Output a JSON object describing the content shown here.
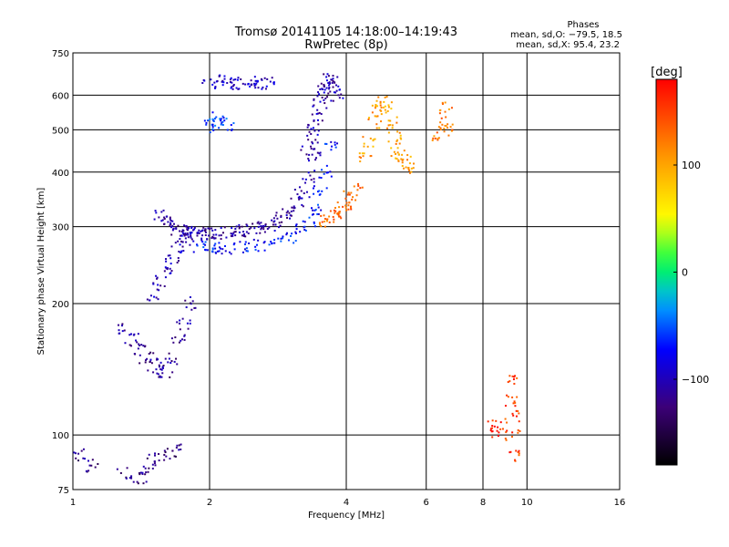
{
  "title": "Tromsø 20141105 14:18:00–14:19:43",
  "subtitle": "RwPretec (8p)",
  "phase_stats": {
    "heading": "Phases",
    "line_o": "mean, sd,O: −79.5, 18.5",
    "line_x": "mean, sd,X:  95.4, 23.2"
  },
  "colorbar": {
    "unit_label": "[deg]",
    "ticks": [
      {
        "value": 100,
        "label": "100"
      },
      {
        "value": 0,
        "label": "0"
      },
      {
        "value": -100,
        "label": "−100"
      }
    ],
    "range": [
      -180,
      180
    ]
  },
  "chart_data": {
    "type": "scatter",
    "xlabel": "Frequency [MHz]",
    "ylabel": "Stationary phase Virtual Height [km]",
    "xscale": "log",
    "yscale": "log",
    "xlim": [
      1,
      16
    ],
    "ylim": [
      75,
      750
    ],
    "x_ticks": [
      {
        "value": 1,
        "label": "1"
      },
      {
        "value": 2,
        "label": "2"
      },
      {
        "value": 4,
        "label": "4"
      },
      {
        "value": 6,
        "label": "6"
      },
      {
        "value": 8,
        "label": "8"
      },
      {
        "value": 10,
        "label": "10"
      },
      {
        "value": 16,
        "label": "16"
      }
    ],
    "y_ticks": [
      {
        "value": 75,
        "label": "75"
      },
      {
        "value": 100,
        "label": "100"
      },
      {
        "value": 200,
        "label": "200"
      },
      {
        "value": 300,
        "label": "300"
      },
      {
        "value": 400,
        "label": "400"
      },
      {
        "value": 500,
        "label": "500"
      },
      {
        "value": 600,
        "label": "600"
      },
      {
        "value": 750,
        "label": "750"
      }
    ],
    "grid": true,
    "point_groups": [
      {
        "x": [
          1.55,
          1.6,
          1.65,
          1.7,
          1.75,
          1.8,
          1.85,
          1.9,
          1.95,
          2.0,
          2.1,
          2.2,
          2.3,
          2.4,
          2.5,
          2.6,
          2.7,
          2.8,
          2.9,
          3.0,
          3.1,
          3.2,
          3.3,
          3.4
        ],
        "y": [
          320,
          308,
          300,
          296,
          293,
          291,
          290,
          289,
          288,
          288,
          289,
          290,
          291,
          293,
          296,
          299,
          303,
          308,
          315,
          325,
          340,
          360,
          390,
          430
        ],
        "phase": -110
      },
      {
        "x": [
          1.9,
          2.0,
          2.1,
          2.2,
          2.4,
          2.6,
          2.8,
          3.0,
          3.2,
          3.3,
          3.4,
          3.5,
          3.6,
          3.7
        ],
        "y": [
          270,
          268,
          267,
          267,
          268,
          271,
          276,
          284,
          297,
          310,
          330,
          360,
          400,
          460
        ],
        "phase": -70
      },
      {
        "x": [
          3.3,
          3.35,
          3.4,
          3.45,
          3.5,
          3.55,
          3.6,
          3.65,
          3.7,
          3.75,
          3.8
        ],
        "y": [
          450,
          480,
          510,
          540,
          570,
          600,
          630,
          650,
          640,
          620,
          600
        ],
        "phase": -105
      },
      {
        "x": [
          3.6,
          3.7,
          3.8,
          3.9,
          4.0,
          4.1,
          4.2
        ],
        "y": [
          310,
          315,
          322,
          330,
          338,
          350,
          365
        ],
        "phase": 130
      },
      {
        "x": [
          4.4,
          4.5,
          4.6,
          4.7,
          4.8,
          4.9,
          5.0,
          5.1,
          5.2,
          5.3,
          5.4,
          5.5
        ],
        "y": [
          430,
          470,
          520,
          560,
          580,
          560,
          520,
          480,
          450,
          430,
          420,
          410
        ],
        "phase": 105
      },
      {
        "x": [
          2.0,
          2.1,
          2.2,
          2.3,
          2.4,
          2.5,
          2.6,
          2.7
        ],
        "y": [
          640,
          645,
          640,
          638,
          642,
          640,
          636,
          640
        ],
        "phase": -95
      },
      {
        "x": [
          2.0,
          2.05,
          2.1,
          2.2
        ],
        "y": [
          510,
          520,
          530,
          515
        ],
        "phase": -60
      },
      {
        "x": [
          1.3,
          1.35,
          1.4,
          1.45,
          1.5,
          1.55,
          1.6,
          1.65,
          1.7,
          1.75,
          1.8
        ],
        "y": [
          175,
          165,
          158,
          150,
          145,
          142,
          140,
          150,
          165,
          180,
          200
        ],
        "phase": -115
      },
      {
        "x": [
          1.5,
          1.55,
          1.6,
          1.65,
          1.7,
          1.75,
          1.8
        ],
        "y": [
          210,
          225,
          240,
          255,
          270,
          280,
          290
        ],
        "phase": -100
      },
      {
        "x": [
          1.04,
          1.1,
          1.3,
          1.4,
          1.45,
          1.5,
          1.6,
          1.7
        ],
        "y": [
          90,
          85,
          82,
          80,
          84,
          88,
          90,
          92
        ],
        "phase": -120
      },
      {
        "x": [
          6.4,
          6.5,
          6.6,
          6.7
        ],
        "y": [
          480,
          520,
          560,
          500
        ],
        "phase": 120
      },
      {
        "x": [
          9.2,
          9.3,
          9.3,
          9.3,
          9.4
        ],
        "y": [
          135,
          120,
          110,
          100,
          90
        ],
        "phase": 150
      },
      {
        "x": [
          8.5,
          8.6
        ],
        "y": [
          105,
          102
        ],
        "phase": 160
      }
    ]
  }
}
